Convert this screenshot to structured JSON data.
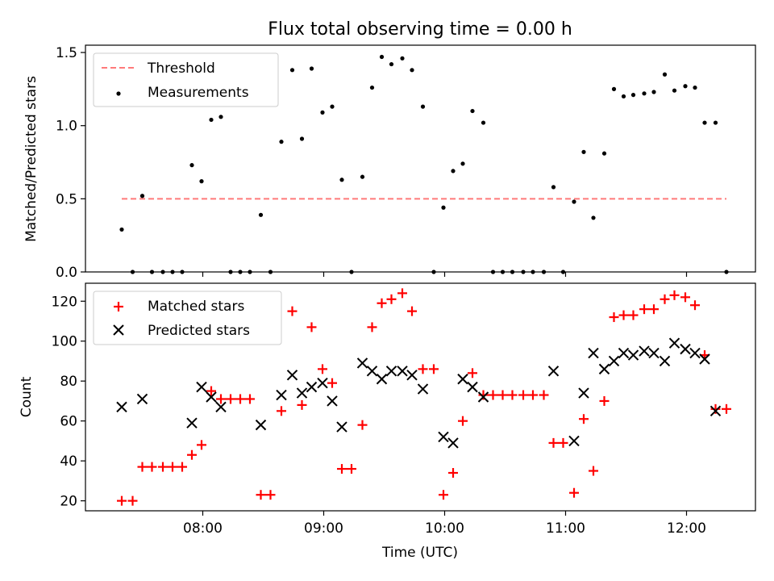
{
  "title": "Flux total observing time = 0.00 h",
  "x_ticks": [
    "08:00",
    "09:00",
    "10:00",
    "11:00",
    "12:00"
  ],
  "x_tick_values_h": [
    8,
    9,
    10,
    11,
    12
  ],
  "colors": {
    "threshold": "#ff7a7a",
    "measurements": "#000000",
    "matched": "#ff0000",
    "predicted": "#000000"
  },
  "chart_data": [
    {
      "type": "scatter",
      "title": "Flux total observing time = 0.00 h",
      "xlabel": "",
      "ylabel": "Matched/Predicted stars",
      "xlim": [
        7.03,
        12.57
      ],
      "ylim": [
        0,
        1.55
      ],
      "y_ticks": [
        0.0,
        0.5,
        1.0,
        1.5
      ],
      "y_tick_labels": [
        "0.0",
        "0.5",
        "1.0",
        "1.5"
      ],
      "legend_position": "upper-left",
      "threshold": {
        "name": "Threshold",
        "y": 0.5,
        "x_range": [
          7.33,
          12.33
        ]
      },
      "series": [
        {
          "name": "Measurements",
          "x": [
            7.33,
            7.42,
            7.5,
            7.58,
            7.67,
            7.75,
            7.83,
            7.91,
            7.99,
            8.07,
            8.15,
            8.23,
            8.31,
            8.39,
            8.48,
            8.56,
            8.65,
            8.74,
            8.82,
            8.9,
            8.99,
            9.07,
            9.15,
            9.23,
            9.32,
            9.4,
            9.48,
            9.56,
            9.65,
            9.73,
            9.82,
            9.91,
            9.99,
            10.07,
            10.15,
            10.23,
            10.32,
            10.4,
            10.48,
            10.56,
            10.65,
            10.73,
            10.82,
            10.9,
            10.98,
            11.07,
            11.15,
            11.23,
            11.32,
            11.4,
            11.48,
            11.56,
            11.65,
            11.73,
            11.82,
            11.9,
            11.99,
            12.07,
            12.15,
            12.24,
            12.33
          ],
          "values": [
            0.29,
            0.0,
            0.52,
            0.0,
            0.0,
            0.0,
            0.0,
            0.73,
            0.62,
            1.04,
            1.06,
            0.0,
            0.0,
            0.0,
            0.39,
            0.0,
            0.89,
            1.38,
            0.91,
            1.39,
            1.09,
            1.13,
            0.63,
            0.0,
            0.65,
            1.26,
            1.47,
            1.42,
            1.46,
            1.38,
            1.13,
            0.0,
            0.44,
            0.69,
            0.74,
            1.1,
            1.02,
            0.0,
            0.0,
            0.0,
            0.0,
            0.0,
            0.0,
            0.58,
            0.0,
            0.48,
            0.82,
            0.37,
            0.81,
            1.25,
            1.2,
            1.21,
            1.22,
            1.23,
            1.35,
            1.24,
            1.27,
            1.26,
            1.02,
            1.02,
            0.0
          ]
        }
      ]
    },
    {
      "type": "scatter",
      "xlabel": "Time (UTC)",
      "ylabel": "Count",
      "xlim": [
        7.03,
        12.57
      ],
      "ylim": [
        15,
        129
      ],
      "y_ticks": [
        20,
        40,
        60,
        80,
        100,
        120
      ],
      "y_tick_labels": [
        "20",
        "40",
        "60",
        "80",
        "100",
        "120"
      ],
      "legend_position": "upper-left",
      "series": [
        {
          "name": "Matched stars",
          "x": [
            7.33,
            7.42,
            7.5,
            7.58,
            7.67,
            7.75,
            7.83,
            7.91,
            7.99,
            8.07,
            8.15,
            8.23,
            8.31,
            8.39,
            8.48,
            8.56,
            8.65,
            8.74,
            8.82,
            8.9,
            8.99,
            9.07,
            9.15,
            9.23,
            9.32,
            9.4,
            9.48,
            9.56,
            9.65,
            9.73,
            9.82,
            9.91,
            9.99,
            10.07,
            10.15,
            10.23,
            10.32,
            10.4,
            10.48,
            10.56,
            10.65,
            10.73,
            10.82,
            10.9,
            10.98,
            11.07,
            11.15,
            11.23,
            11.32,
            11.4,
            11.48,
            11.56,
            11.65,
            11.73,
            11.82,
            11.9,
            11.99,
            12.07,
            12.15,
            12.24,
            12.33
          ],
          "values": [
            20,
            20,
            37,
            37,
            37,
            37,
            37,
            43,
            48,
            75,
            71,
            71,
            71,
            71,
            23,
            23,
            65,
            115,
            68,
            107,
            86,
            79,
            36,
            36,
            58,
            107,
            119,
            121,
            124,
            115,
            86,
            86,
            23,
            34,
            60,
            84,
            73,
            73,
            73,
            73,
            73,
            73,
            73,
            49,
            49,
            24,
            61,
            35,
            70,
            112,
            113,
            113,
            116,
            116,
            121,
            123,
            122,
            118,
            93,
            66,
            66
          ]
        },
        {
          "name": "Predicted stars",
          "x": [
            7.33,
            7.5,
            7.91,
            7.99,
            8.07,
            8.15,
            8.48,
            8.65,
            8.74,
            8.82,
            8.9,
            8.99,
            9.07,
            9.15,
            9.32,
            9.4,
            9.48,
            9.56,
            9.65,
            9.73,
            9.82,
            9.99,
            10.07,
            10.15,
            10.23,
            10.32,
            10.9,
            11.07,
            11.15,
            11.23,
            11.32,
            11.4,
            11.48,
            11.56,
            11.65,
            11.73,
            11.82,
            11.9,
            11.99,
            12.07,
            12.15,
            12.24
          ],
          "values": [
            67,
            71,
            59,
            77,
            72,
            67,
            58,
            73,
            83,
            74,
            77,
            79,
            70,
            57,
            89,
            85,
            81,
            85,
            85,
            83,
            76,
            52,
            49,
            81,
            77,
            72,
            85,
            50,
            74,
            94,
            86,
            90,
            94,
            93,
            95,
            94,
            90,
            99,
            96,
            94,
            91,
            65
          ]
        }
      ]
    }
  ]
}
